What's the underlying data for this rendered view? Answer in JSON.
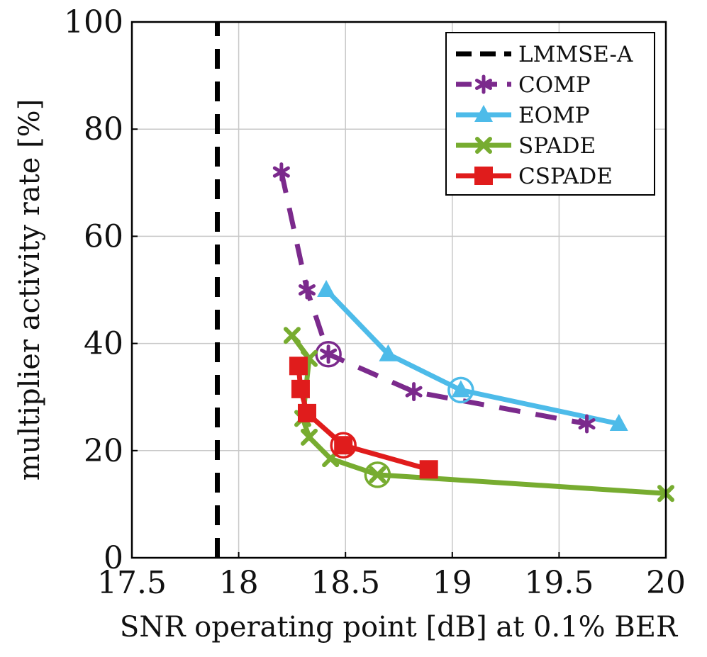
{
  "chart_data": {
    "type": "line",
    "xlabel": "SNR operating point [dB] at 0.1% BER",
    "ylabel": "multiplier activity rate [%]",
    "xlim": [
      17.5,
      20
    ],
    "ylim": [
      0,
      100
    ],
    "x_ticks": [
      {
        "value": 17.5,
        "label": "17.5"
      },
      {
        "value": 18,
        "label": "18"
      },
      {
        "value": 18.5,
        "label": "18.5"
      },
      {
        "value": 19,
        "label": "19"
      },
      {
        "value": 19.5,
        "label": "19.5"
      },
      {
        "value": 20,
        "label": "20"
      }
    ],
    "y_ticks": [
      {
        "value": 0,
        "label": "0"
      },
      {
        "value": 20,
        "label": "20"
      },
      {
        "value": 40,
        "label": "40"
      },
      {
        "value": 60,
        "label": "60"
      },
      {
        "value": 80,
        "label": "80"
      },
      {
        "value": 100,
        "label": "100"
      }
    ],
    "grid": true,
    "legend_position": "top-right",
    "series": [
      {
        "name": "LMMSE-A",
        "color": "#000000",
        "dash": true,
        "marker": "none",
        "x": [
          17.9,
          17.9
        ],
        "y": [
          0,
          100
        ],
        "highlight": null
      },
      {
        "name": "COMP",
        "color": "#7b2a8c",
        "dash": true,
        "marker": "star",
        "x": [
          18.2,
          18.32,
          18.42,
          18.82,
          19.63
        ],
        "y": [
          72,
          50,
          38,
          31,
          25
        ],
        "highlight": 2
      },
      {
        "name": "EOMP",
        "color": "#4dbbe9",
        "dash": false,
        "marker": "triangle",
        "x": [
          18.41,
          18.7,
          19.04,
          19.78
        ],
        "y": [
          50,
          38,
          31.3,
          25
        ],
        "highlight": 2
      },
      {
        "name": "SPADE",
        "color": "#77ac30",
        "dash": false,
        "marker": "cross",
        "x": [
          18.25,
          18.33,
          18.3,
          18.33,
          18.43,
          18.65,
          20.0
        ],
        "y": [
          41.5,
          37.2,
          26,
          22.5,
          18.5,
          15.5,
          12
        ],
        "highlight": 5
      },
      {
        "name": "CSPADE",
        "color": "#e01c1c",
        "dash": false,
        "marker": "square",
        "x": [
          18.28,
          18.29,
          18.32,
          18.49,
          18.89
        ],
        "y": [
          35.8,
          31.5,
          27,
          21,
          16.5
        ],
        "highlight": 3
      }
    ]
  }
}
